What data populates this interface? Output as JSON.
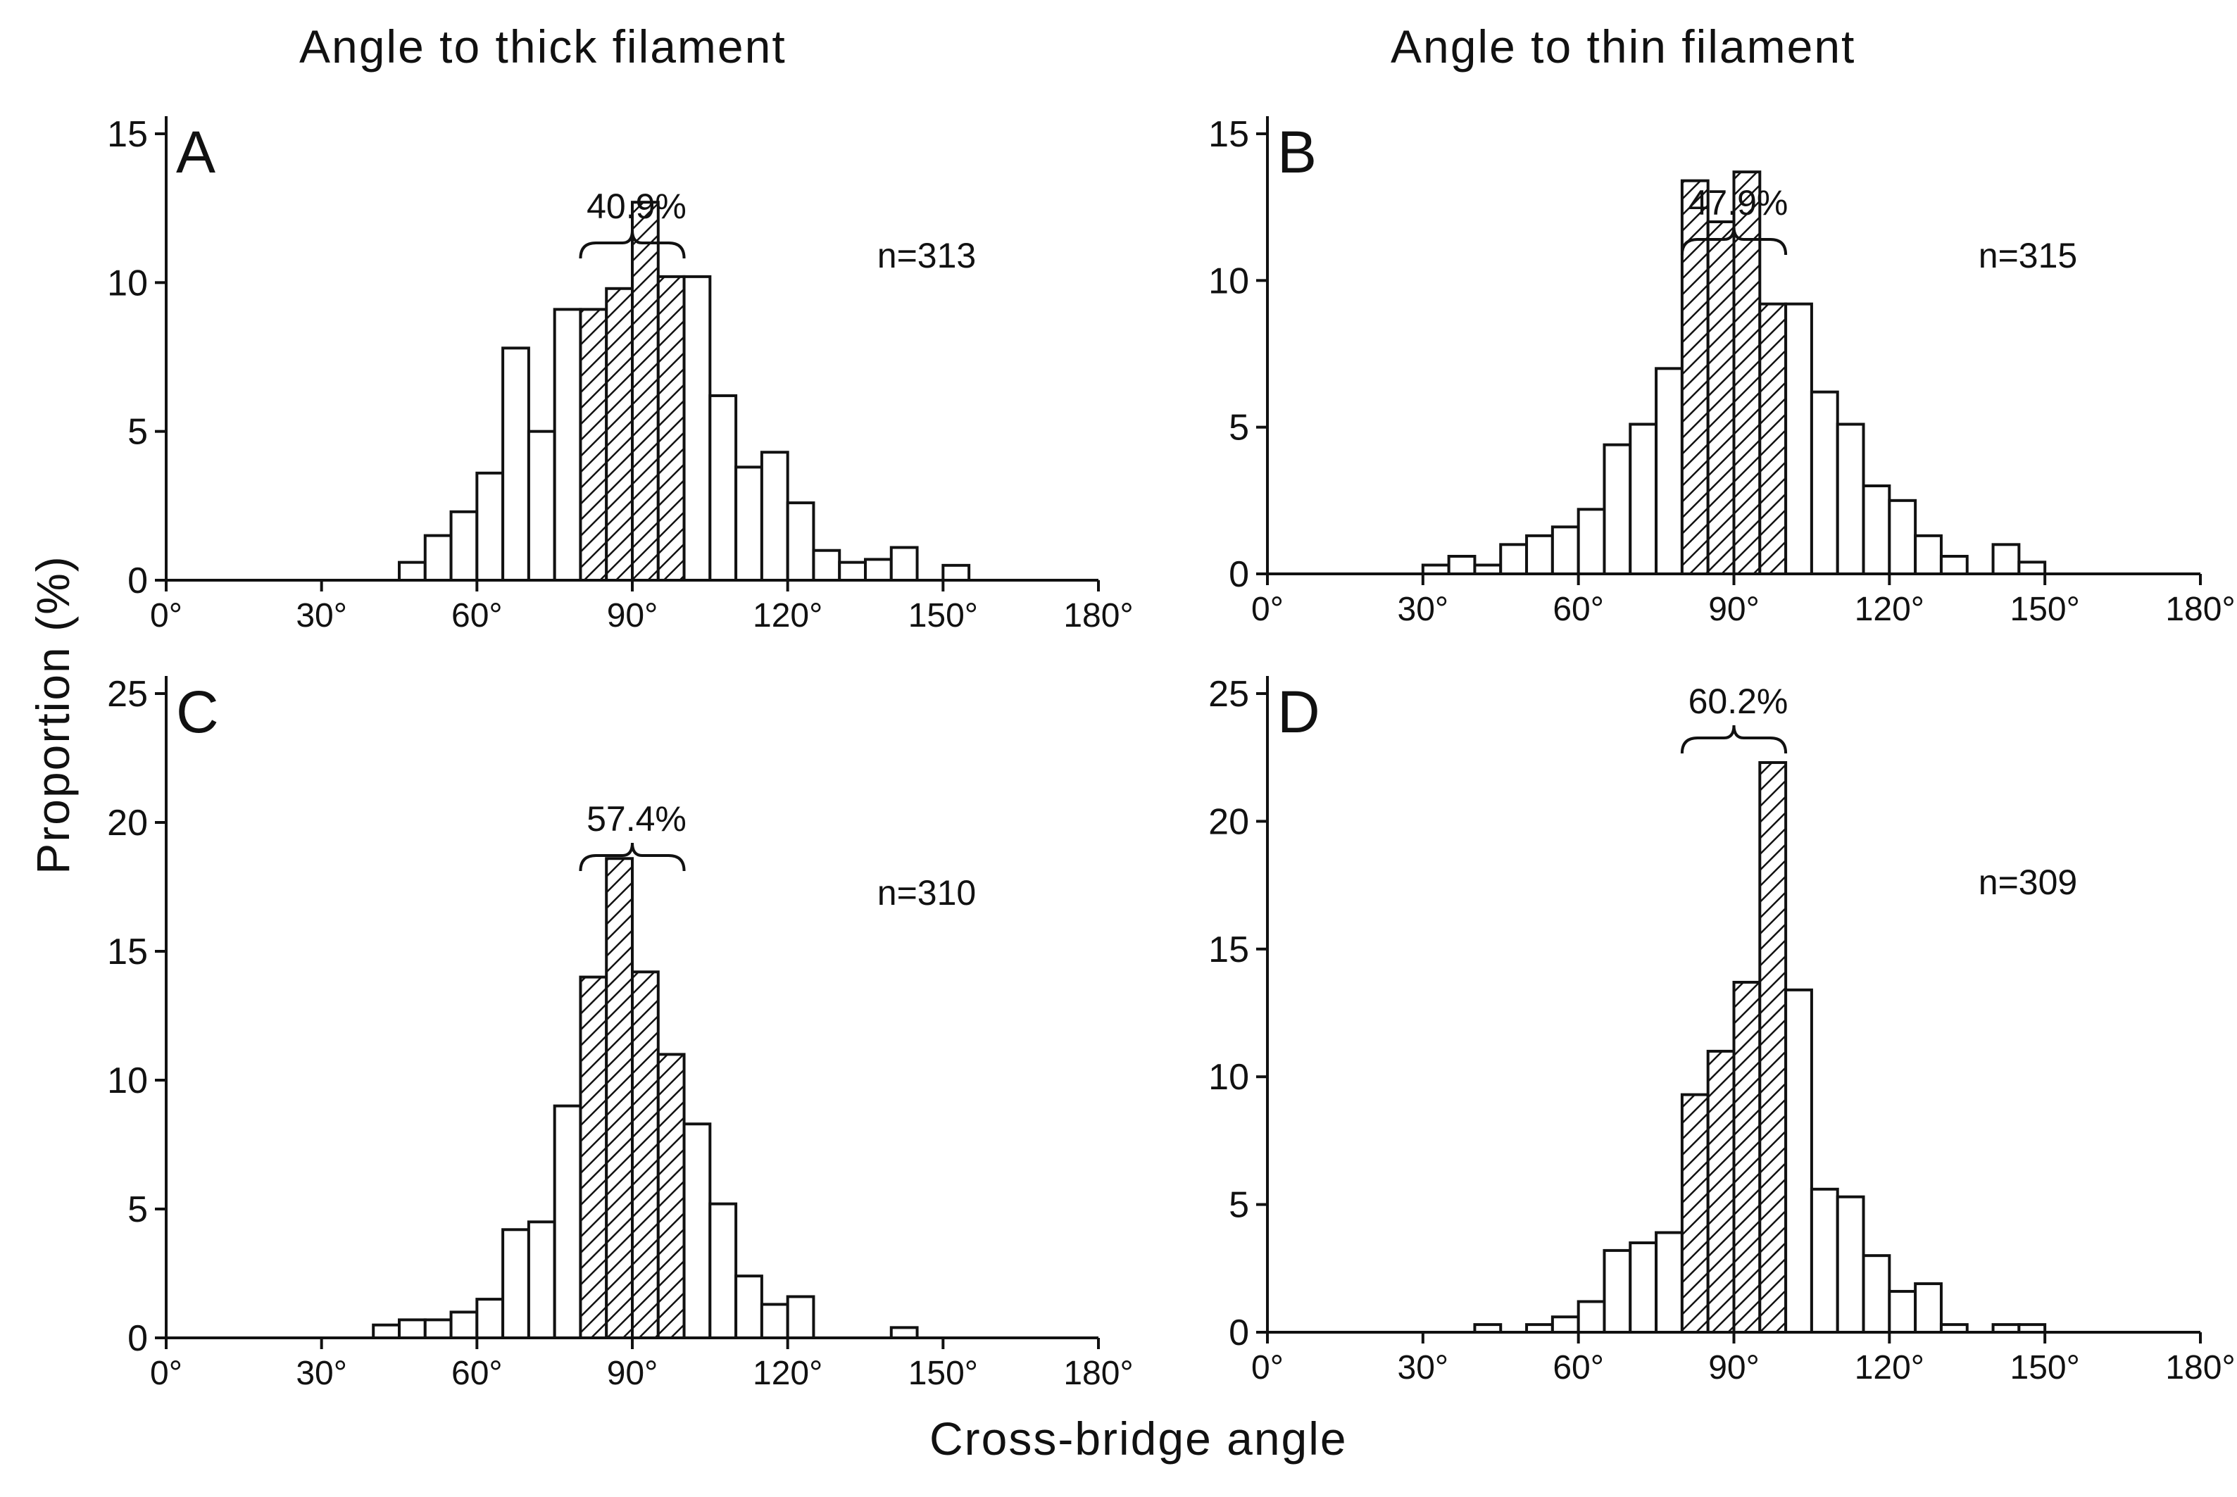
{
  "titles": {
    "left": "Angle to thick filament",
    "right": "Angle to thin filament"
  },
  "ylabel": "Proportion (%)",
  "xlabel": "Cross-bridge angle",
  "chart_data": [
    {
      "type": "bar",
      "panel": "A",
      "n_label": "n=313",
      "bracket_label": "40.9%",
      "hatched_range": [
        80,
        100
      ],
      "bin_width": 5,
      "xlim": [
        0,
        180
      ],
      "ylim": [
        0,
        15
      ],
      "yticks": [
        0,
        5,
        10,
        15
      ],
      "xticks": [
        "0°",
        "30°",
        "60°",
        "90°",
        "120°",
        "150°",
        "180°"
      ],
      "x": [
        45,
        50,
        55,
        60,
        65,
        70,
        75,
        80,
        85,
        90,
        95,
        100,
        105,
        110,
        115,
        120,
        125,
        130,
        135,
        140,
        145,
        150
      ],
      "values": [
        0.6,
        1.5,
        2.3,
        3.6,
        7.8,
        5.0,
        9.1,
        9.1,
        9.8,
        12.7,
        10.2,
        10.2,
        6.2,
        3.8,
        4.3,
        2.6,
        1.0,
        0.6,
        0.7,
        1.1,
        0,
        0.5
      ]
    },
    {
      "type": "bar",
      "panel": "B",
      "n_label": "n=315",
      "bracket_label": "47.9%",
      "hatched_range": [
        80,
        100
      ],
      "bin_width": 5,
      "xlim": [
        0,
        180
      ],
      "ylim": [
        0,
        15
      ],
      "yticks": [
        0,
        5,
        10,
        15
      ],
      "xticks": [
        "0°",
        "30°",
        "60°",
        "90°",
        "120°",
        "150°",
        "180°"
      ],
      "x": [
        30,
        35,
        40,
        45,
        50,
        55,
        60,
        65,
        70,
        75,
        80,
        85,
        90,
        95,
        100,
        105,
        110,
        115,
        120,
        125,
        130,
        135,
        140,
        145
      ],
      "values": [
        0.3,
        0.6,
        0.3,
        1.0,
        1.3,
        1.6,
        2.2,
        4.4,
        5.1,
        7.0,
        13.4,
        12.0,
        13.7,
        9.2,
        9.2,
        6.2,
        5.1,
        3.0,
        2.5,
        1.3,
        0.6,
        0,
        1.0,
        0.4
      ]
    },
    {
      "type": "bar",
      "panel": "C",
      "n_label": "n=310",
      "bracket_label": "57.4%",
      "hatched_range": [
        80,
        100
      ],
      "bin_width": 5,
      "xlim": [
        0,
        180
      ],
      "ylim": [
        0,
        25
      ],
      "yticks": [
        0,
        5,
        10,
        15,
        20,
        25
      ],
      "xticks": [
        "0°",
        "30°",
        "60°",
        "90°",
        "120°",
        "150°",
        "180°"
      ],
      "x": [
        40,
        45,
        50,
        55,
        60,
        65,
        70,
        75,
        80,
        85,
        90,
        95,
        100,
        105,
        110,
        115,
        120,
        140
      ],
      "values": [
        0.5,
        0.7,
        0.7,
        1.0,
        1.5,
        4.2,
        4.5,
        9.0,
        14.0,
        18.6,
        14.2,
        11.0,
        8.3,
        5.2,
        2.4,
        1.3,
        1.6,
        0.4
      ]
    },
    {
      "type": "bar",
      "panel": "D",
      "n_label": "n=309",
      "bracket_label": "60.2%",
      "hatched_range": [
        80,
        100
      ],
      "bin_width": 5,
      "xlim": [
        0,
        180
      ],
      "ylim": [
        0,
        25
      ],
      "yticks": [
        0,
        5,
        10,
        15,
        20,
        25
      ],
      "xticks": [
        "0°",
        "30°",
        "60°",
        "90°",
        "120°",
        "150°",
        "180°"
      ],
      "x": [
        40,
        45,
        50,
        55,
        60,
        65,
        70,
        75,
        80,
        85,
        90,
        95,
        100,
        105,
        110,
        115,
        120,
        125,
        130,
        135,
        140,
        145
      ],
      "values": [
        0.3,
        0,
        0.3,
        0.6,
        1.2,
        3.2,
        3.5,
        3.9,
        9.3,
        11.0,
        13.7,
        22.3,
        13.4,
        5.6,
        5.3,
        3.0,
        1.6,
        1.9,
        0.3,
        0,
        0.3,
        0.3
      ]
    }
  ]
}
